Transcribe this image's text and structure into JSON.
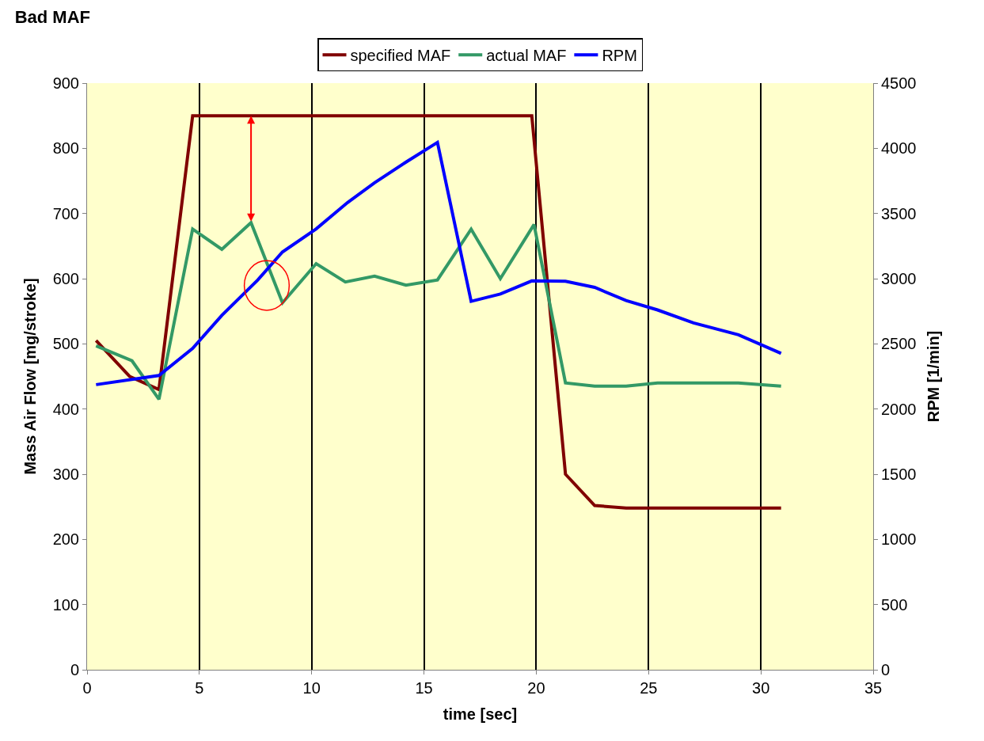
{
  "chart_data": {
    "type": "line",
    "title": "Bad MAF",
    "xlabel": "time [sec]",
    "ylabel": "Mass Air Flow [mg/stroke]",
    "y2label": "RPM [1/min]",
    "xlim": [
      0,
      35
    ],
    "xticks": [
      0,
      5,
      10,
      15,
      20,
      25,
      30,
      35
    ],
    "ylim": [
      0,
      900
    ],
    "yticks": [
      0,
      100,
      200,
      300,
      400,
      500,
      600,
      700,
      800,
      900
    ],
    "y2lim": [
      0,
      4500
    ],
    "y2ticks": [
      0,
      500,
      1000,
      1500,
      2000,
      2500,
      3000,
      3500,
      4000,
      4500
    ],
    "grid": "x",
    "legend": "top",
    "marker": "none",
    "line_style": "solid",
    "series": [
      {
        "name": "specified MAF",
        "color": "#800000",
        "x": [
          0.4,
          1.9,
          3.2,
          4.7,
          19.8,
          21.3,
          22.6,
          24,
          30.9
        ],
        "values": [
          505,
          450,
          430,
          850,
          850,
          300,
          252,
          248,
          248
        ]
      },
      {
        "name": "actual MAF",
        "color": "#339966",
        "x": [
          0.4,
          2,
          3.2,
          4.7,
          6,
          7.3,
          8.7,
          10.2,
          11.5,
          12.8,
          14.2,
          15.6,
          17.1,
          18.4,
          19.9,
          21.3,
          22.6,
          24,
          25.4,
          27,
          29,
          30.9
        ],
        "values": [
          497,
          474,
          415,
          676,
          645,
          686,
          563,
          623,
          595,
          604,
          590,
          598,
          676,
          600,
          683,
          440,
          435,
          435,
          440,
          440,
          440,
          435
        ]
      },
      {
        "name": "RPM",
        "color": "#0000ff",
        "axis": "y2",
        "x": [
          0.4,
          3.2,
          4.7,
          6,
          7.6,
          8.7,
          10.2,
          11.6,
          12.8,
          14.2,
          15.6,
          17.1,
          18.4,
          19.8,
          21.3,
          22.6,
          24,
          25.4,
          27,
          29,
          30.9
        ],
        "values": [
          2187,
          2257,
          2465,
          2718,
          2990,
          3205,
          3382,
          3584,
          3736,
          3894,
          4045,
          2826,
          2882,
          2983,
          2980,
          2933,
          2832,
          2760,
          2661,
          2570,
          2427
        ]
      }
    ]
  }
}
